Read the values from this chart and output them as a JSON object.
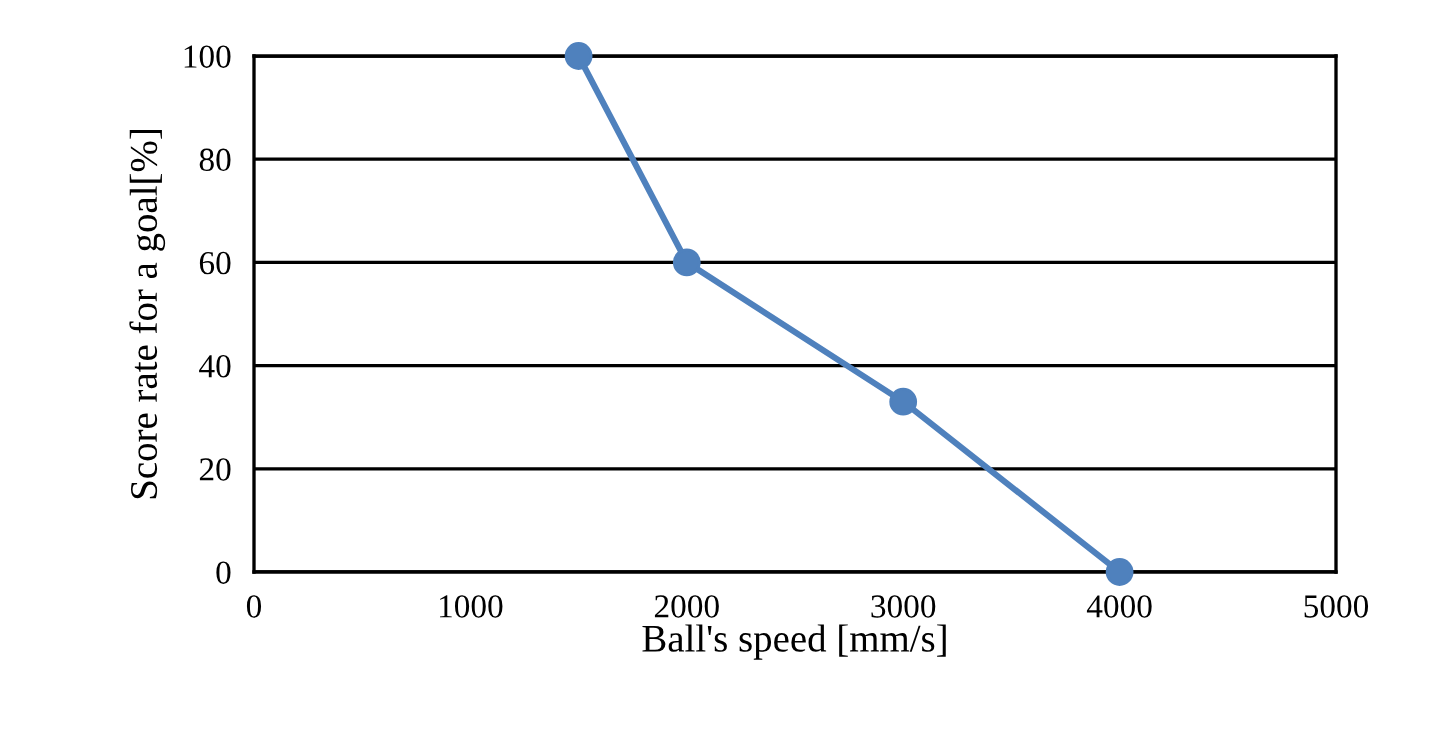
{
  "chart_data": {
    "type": "line",
    "xlabel": "Ball's speed [mm/s]",
    "ylabel": "Score rate for a goal[%]",
    "x": [
      1500,
      2000,
      3000,
      4000
    ],
    "series": [
      {
        "color": "#4f81bd",
        "values": [
          100,
          60,
          33,
          0
        ]
      }
    ],
    "xlim": [
      0,
      5000
    ],
    "xticks": [
      0,
      1000,
      2000,
      3000,
      4000,
      5000
    ],
    "ylim": [
      0,
      100
    ],
    "yticks": [
      0,
      20,
      40,
      60,
      80,
      100
    ],
    "grid": "y",
    "marker": "circle",
    "line_style": "solid",
    "legend": false
  }
}
